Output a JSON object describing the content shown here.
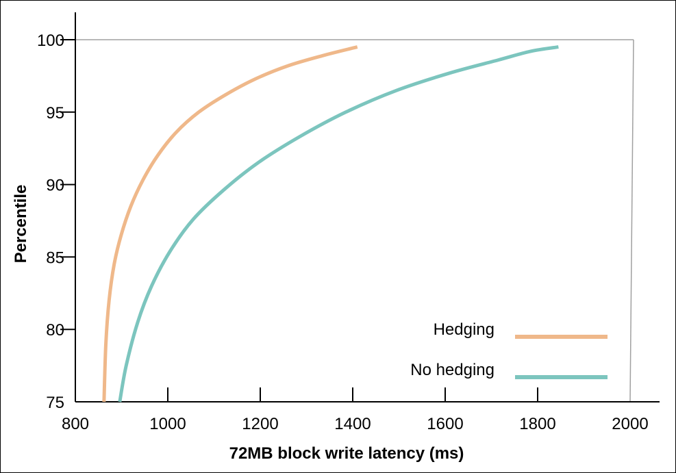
{
  "chart_data": {
    "type": "line",
    "title": "",
    "xlabel": "72MB block write latency (ms)",
    "ylabel": "Percentile",
    "xlim": [
      800,
      2000
    ],
    "ylim": [
      75,
      100
    ],
    "x_ticks": [
      "800",
      "1000",
      "1200",
      "1400",
      "1600",
      "1800",
      "2000"
    ],
    "y_ticks": [
      "75",
      "80",
      "85",
      "90",
      "95",
      "100"
    ],
    "legend_position": "bottom-right",
    "grid": false,
    "series": [
      {
        "name": "Hedging",
        "color": "#efb88a",
        "points": [
          [
            862,
            75
          ],
          [
            866,
            79
          ],
          [
            873,
            82
          ],
          [
            884,
            84.5
          ],
          [
            899,
            86.5
          ],
          [
            920,
            88.5
          ],
          [
            946,
            90.3
          ],
          [
            978,
            92
          ],
          [
            1018,
            93.6
          ],
          [
            1067,
            95
          ],
          [
            1125,
            96.2
          ],
          [
            1190,
            97.3
          ],
          [
            1260,
            98.2
          ],
          [
            1335,
            98.9
          ],
          [
            1410,
            99.5
          ]
        ]
      },
      {
        "name": "No hedging",
        "color": "#7cc5be",
        "points": [
          [
            896,
            75
          ],
          [
            910,
            77.5
          ],
          [
            935,
            80.5
          ],
          [
            965,
            83
          ],
          [
            1005,
            85.4
          ],
          [
            1055,
            87.6
          ],
          [
            1120,
            89.6
          ],
          [
            1195,
            91.5
          ],
          [
            1285,
            93.3
          ],
          [
            1385,
            95
          ],
          [
            1495,
            96.5
          ],
          [
            1610,
            97.7
          ],
          [
            1715,
            98.6
          ],
          [
            1785,
            99.2
          ],
          [
            1845,
            99.5
          ]
        ]
      }
    ]
  }
}
